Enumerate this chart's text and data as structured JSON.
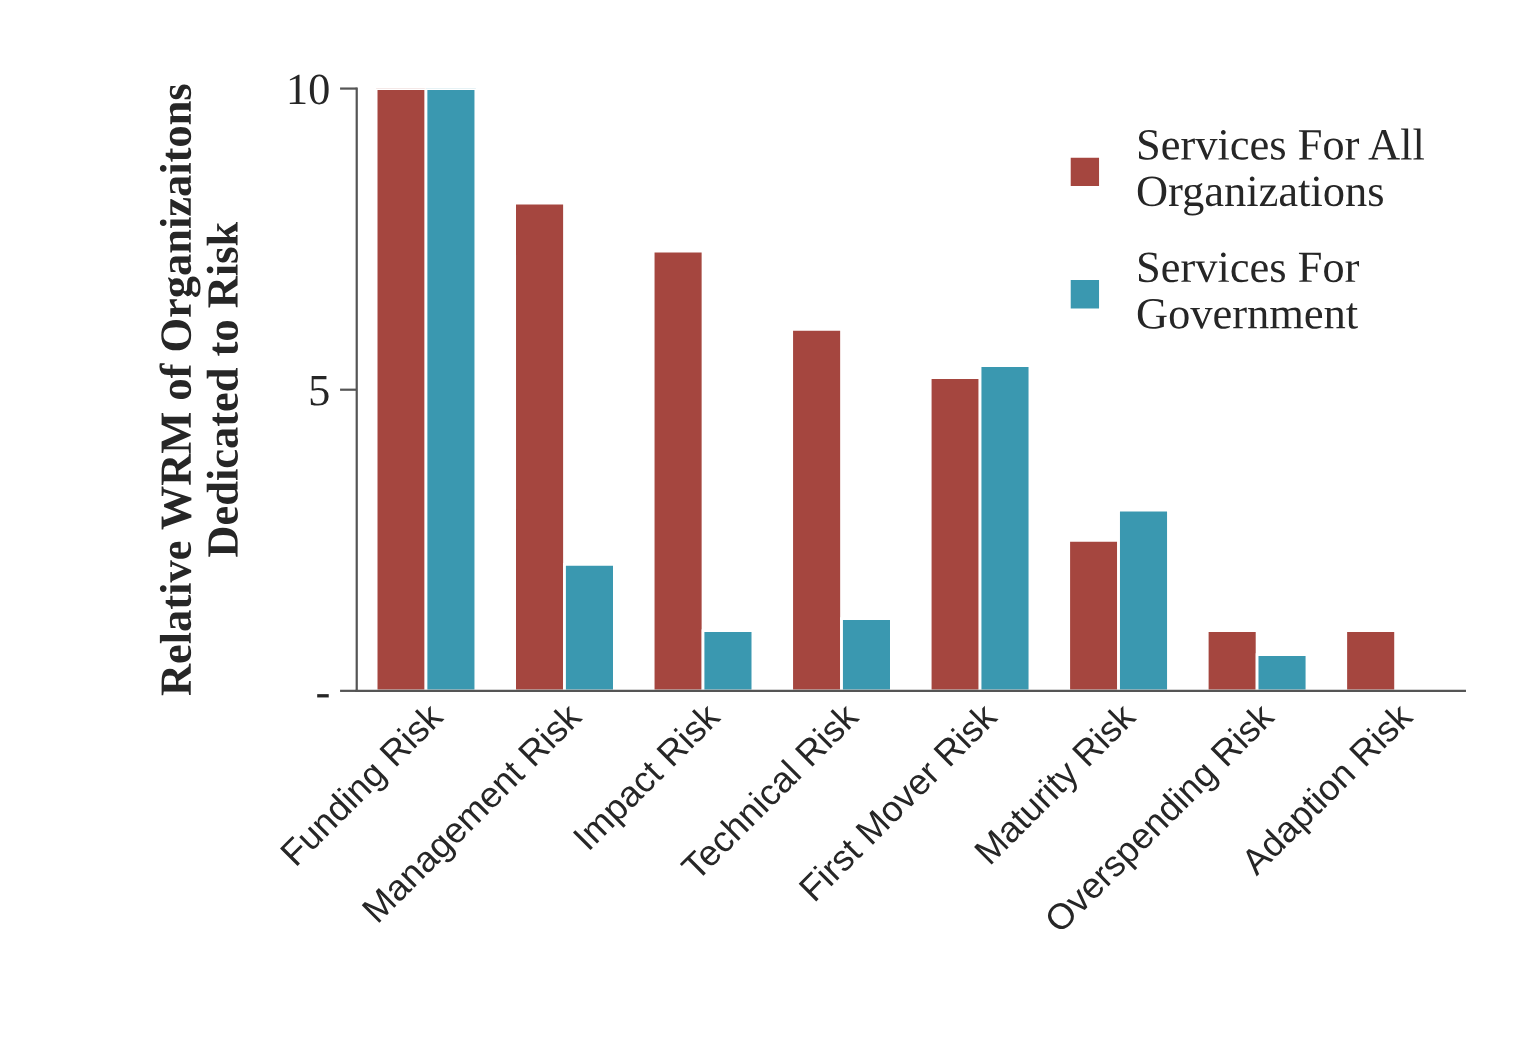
{
  "chart_data": {
    "type": "bar",
    "ylabel": "Relative WRM of Organizaitons\nDedicated to Risk",
    "categories": [
      "Funding Risk",
      "Management Risk",
      "Impact Risk",
      "Technical Risk",
      "First Mover Risk",
      "Maturity Risk",
      "Overspending Risk",
      "Adaption Risk"
    ],
    "series": [
      {
        "name": "Services For All\nOrganizations",
        "color": "#a5463f",
        "values": [
          10,
          8.1,
          7.3,
          6.0,
          5.2,
          2.5,
          1.0,
          1.0
        ]
      },
      {
        "name": "Services For\nGovernment",
        "color": "#3a98b0",
        "values": [
          10,
          2.1,
          1.0,
          1.2,
          5.4,
          3.0,
          0.6,
          null
        ]
      }
    ],
    "ylim": [
      0,
      10
    ],
    "yticks": [
      {
        "value": 0,
        "label": "-"
      },
      5,
      10
    ],
    "grid": false,
    "legend": "top right"
  }
}
